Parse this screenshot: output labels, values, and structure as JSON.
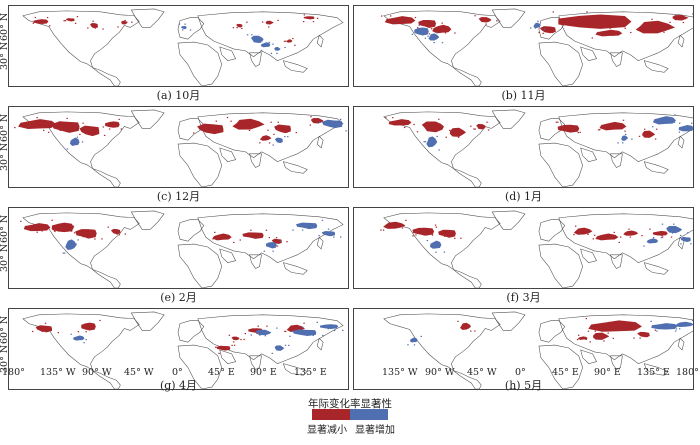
{
  "colors": {
    "decrease": "#a8262a",
    "increase": "#4f6fb0",
    "coast": "#555555"
  },
  "panels": [
    {
      "id": "a",
      "caption": "(a) 10月",
      "column": "left",
      "row": 0
    },
    {
      "id": "b",
      "caption": "(b) 11月",
      "column": "right",
      "row": 0
    },
    {
      "id": "c",
      "caption": "(c) 12月",
      "column": "left",
      "row": 1
    },
    {
      "id": "d",
      "caption": "(d) 1月",
      "column": "right",
      "row": 1
    },
    {
      "id": "e",
      "caption": "(e) 2月",
      "column": "left",
      "row": 2
    },
    {
      "id": "f",
      "caption": "(f) 3月",
      "column": "right",
      "row": 2
    },
    {
      "id": "g",
      "caption": "(g) 4月",
      "column": "left",
      "row": 3
    },
    {
      "id": "h",
      "caption": "(h) 5月",
      "column": "right",
      "row": 3
    }
  ],
  "y_axis_labels": [
    "30° N",
    "60° N"
  ],
  "x_axis_labels_left": [
    "180°",
    "135° W",
    "90° W",
    "45° W",
    "0°",
    "45° E",
    "90° E",
    "135° E"
  ],
  "x_axis_labels_right": [
    "135° W",
    "90° W",
    "45° W",
    "0°",
    "45° E",
    "90° E",
    "135° E",
    "180°"
  ],
  "legend": {
    "title": "年际变化率显著性",
    "items": [
      {
        "label": "显著减小",
        "color": "#a8262a"
      },
      {
        "label": "显著增加",
        "color": "#4f6fb0"
      }
    ]
  }
}
